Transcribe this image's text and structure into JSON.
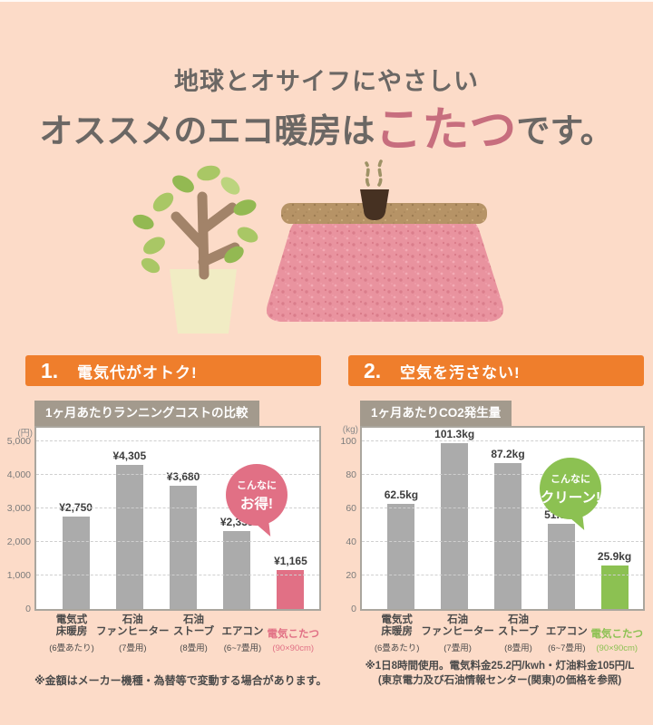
{
  "title": {
    "line1": "地球とオサイフにやさしい",
    "line2_prefix": "オススメのエコ暖房は",
    "line2_highlight": "こたつ",
    "line2_suffix": "です。",
    "highlight_color": "#c76e7e",
    "text_color": "#6b6764"
  },
  "illustration": {
    "items": [
      "potted-plant",
      "kotatsu-blanket",
      "kotatsu-tabletop",
      "teapot",
      "steam"
    ]
  },
  "sections": [
    {
      "number": "1.",
      "heading": "電気代がオトク!",
      "accent_color": "#ef7e2c"
    },
    {
      "number": "2.",
      "heading": "空気を汚さない!",
      "accent_color": "#ef7e2c"
    }
  ],
  "chart_data": [
    {
      "type": "bar",
      "title": "1ヶ月あたりランニングコストの比較",
      "unit": "(円)",
      "ylabel": "円",
      "ylim": [
        0,
        5500
      ],
      "grid": "dashed",
      "y_ticks": [
        {
          "value": 5000,
          "label": "5,000"
        },
        {
          "value": 4000,
          "label": "4,000"
        },
        {
          "value": 3000,
          "label": "3,000"
        },
        {
          "value": 2000,
          "label": "2,000"
        },
        {
          "value": 1000,
          "label": "1,000"
        },
        {
          "value": 0,
          "label": "0"
        }
      ],
      "categories": [
        {
          "name_lines": [
            "電気式",
            "床暖房"
          ],
          "note": "(6畳あたり)"
        },
        {
          "name_lines": [
            "石油",
            "ファンヒーター"
          ],
          "note": "(7畳用)"
        },
        {
          "name_lines": [
            "石油",
            "ストーブ"
          ],
          "note": "(8畳用)"
        },
        {
          "name_lines": [
            "エアコン"
          ],
          "note": "(6~7畳用)"
        },
        {
          "name_lines": [
            "電気こたつ"
          ],
          "note": "(90×90cm)"
        }
      ],
      "values": [
        2750,
        4305,
        3680,
        2335,
        1165
      ],
      "value_labels": [
        "¥2,750",
        "¥4,305",
        "¥3,680",
        "¥2,335",
        "¥1,165"
      ],
      "bar_color": "#ababab",
      "highlight_index": 4,
      "highlight_color": "#e17085",
      "bubble": {
        "line1": "こんなに",
        "line2": "お得!",
        "color": "#e17085"
      }
    },
    {
      "type": "bar",
      "title": "1ヶ月あたりCO2発生量",
      "unit": "(kg)",
      "ylabel": "kg",
      "ylim": [
        0,
        110
      ],
      "grid": "dashed",
      "y_ticks": [
        {
          "value": 100,
          "label": "100"
        },
        {
          "value": 80,
          "label": "80"
        },
        {
          "value": 60,
          "label": "60"
        },
        {
          "value": 40,
          "label": "40"
        },
        {
          "value": 20,
          "label": "20"
        },
        {
          "value": 0,
          "label": "0"
        }
      ],
      "categories": [
        {
          "name_lines": [
            "電気式",
            "床暖房"
          ],
          "note": "(6畳あたり)"
        },
        {
          "name_lines": [
            "石油",
            "ファンヒーター"
          ],
          "note": "(7畳用)"
        },
        {
          "name_lines": [
            "石油",
            "ストーブ"
          ],
          "note": "(8畳用)"
        },
        {
          "name_lines": [
            "エアコン"
          ],
          "note": "(6~7畳用)"
        },
        {
          "name_lines": [
            "電気こたつ"
          ],
          "note": "(90×90cm)"
        }
      ],
      "values": [
        62.5,
        101.3,
        87.2,
        51.0,
        25.9
      ],
      "value_labels": [
        "62.5kg",
        "101.3kg",
        "87.2kg",
        "51.0kg",
        "25.9kg"
      ],
      "bar_color": "#ababab",
      "highlight_index": 4,
      "highlight_color": "#8cc152",
      "bubble": {
        "line1": "こんなに",
        "line2": "クリーン!",
        "color": "#8cc152"
      }
    }
  ],
  "footnotes": {
    "left": "※金額はメーカー機種・為替等で変動する場合があります。",
    "right_line1": "※1日8時間使用。電気料金25.2円/kwh・灯油料金105円/L",
    "right_line2": "(東京電力及び石油情報センター(関東)の価格を参照)"
  },
  "colors": {
    "background": "#fcdbc8",
    "section_accent": "#ef7e2c",
    "chart_header": "#a39a8d",
    "bar_gray": "#ababab",
    "kotatsu_pink": "#e17085",
    "eco_green": "#8cc152",
    "title_highlight": "#c76e7e"
  }
}
